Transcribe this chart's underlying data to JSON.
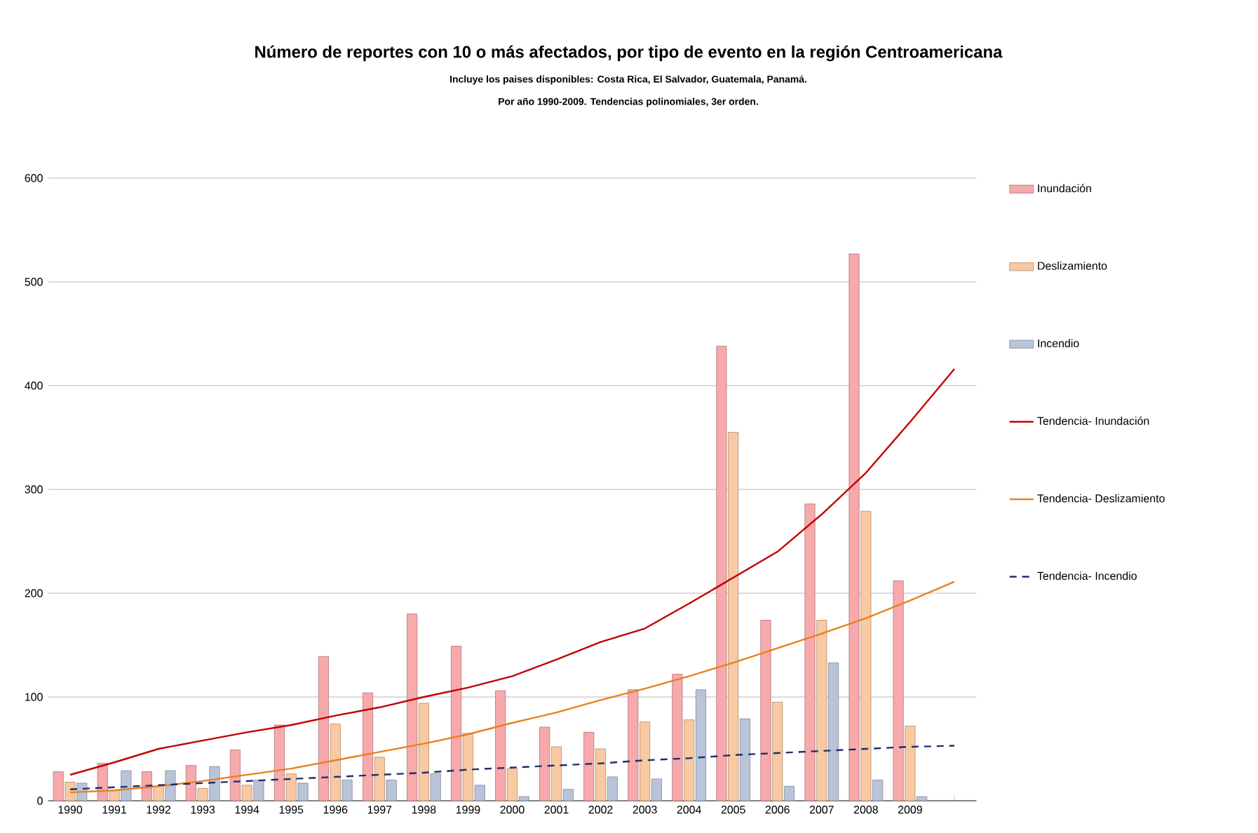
{
  "chart_data": {
    "type": "bar",
    "title": "Número de reportes con 10 o más afectados, por tipo de evento en la región Centroamericana",
    "subtitle": "Incluye los paises disponibles: Costa Rica, El Salvador, Guatemala, Panamá.",
    "annotations": [
      "Por año 1990-2009. Tendencias polinomiales, 3er orden."
    ],
    "categories": [
      "1990",
      "1991",
      "1992",
      "1993",
      "1994",
      "1995",
      "1996",
      "1997",
      "1998",
      "1999",
      "2000",
      "2001",
      "2002",
      "2003",
      "2004",
      "2005",
      "2006",
      "2007",
      "2008",
      "2009",
      null
    ],
    "series": [
      {
        "name": "Inundación",
        "color": "#f7a9ab",
        "values": [
          28,
          36,
          28,
          34,
          49,
          73,
          139,
          104,
          180,
          149,
          106,
          71,
          66,
          107,
          122,
          438,
          174,
          286,
          527,
          212,
          null
        ]
      },
      {
        "name": "Deslizamiento",
        "color": "#f8c9a2",
        "values": [
          18,
          10,
          14,
          12,
          15,
          26,
          74,
          42,
          94,
          65,
          31,
          52,
          50,
          76,
          78,
          355,
          95,
          174,
          279,
          72,
          null
        ]
      },
      {
        "name": "Incendio",
        "color": "#b9c4d8",
        "values": [
          17,
          29,
          29,
          33,
          20,
          17,
          20,
          20,
          26,
          15,
          4,
          11,
          23,
          21,
          107,
          79,
          14,
          133,
          20,
          4,
          null
        ]
      },
      {
        "name": "Tendencia- Inundación",
        "type": "line",
        "color": "#c00000",
        "line_style": "solid",
        "values": [
          25,
          37,
          50,
          58,
          66,
          73,
          82,
          90,
          100,
          109,
          120,
          136,
          153,
          166,
          190,
          215,
          240,
          276,
          316,
          365,
          416
        ]
      },
      {
        "name": "Tendencia- Deslizamiento",
        "type": "line",
        "color": "#e8801e",
        "line_style": "solid",
        "values": [
          8,
          10,
          14,
          19,
          25,
          31,
          39,
          47,
          55,
          64,
          75,
          85,
          97,
          108,
          120,
          133,
          147,
          161,
          176,
          193,
          211
        ]
      },
      {
        "name": "Tendencia- Incendio",
        "type": "line",
        "color": "#1f2f6b",
        "line_style": "dashed",
        "values": [
          11,
          13,
          15,
          17,
          19,
          21,
          23,
          25,
          27,
          30,
          32,
          34,
          36,
          39,
          41,
          44,
          46,
          48,
          50,
          52,
          53
        ]
      }
    ],
    "ylim": [
      0,
      600
    ],
    "yticks": [
      0,
      100,
      200,
      300,
      400,
      500,
      600
    ],
    "grid": "y",
    "legend": "right",
    "marker": "none"
  }
}
